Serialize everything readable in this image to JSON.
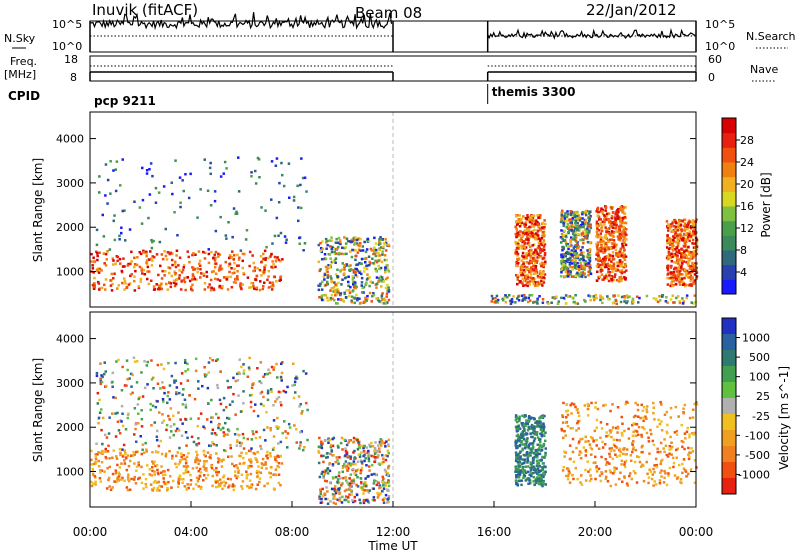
{
  "header": {
    "station": "Inuvik (fitACF)",
    "beam": "Beam 08",
    "date": "22/Jan/2012"
  },
  "time_axis": {
    "label": "Time UT",
    "ticks": [
      "00:00",
      "04:00",
      "08:00",
      "12:00",
      "16:00",
      "20:00",
      "00:00"
    ],
    "range_hours": [
      0,
      24
    ],
    "data_gap_hours": [
      12.0,
      15.75
    ]
  },
  "nsky_panel": {
    "left_label": "N.Sky",
    "right_label": "N.Search",
    "left_ticks": [
      "10^5",
      "10^0"
    ],
    "right_ticks": [
      "10^5",
      "10^0"
    ]
  },
  "freq_panel": {
    "left_label_1": "Freq.",
    "left_label_2": "[MHz]",
    "right_label": "Nave",
    "left_ticks": [
      "18",
      "8"
    ],
    "right_ticks": [
      "60",
      "0"
    ]
  },
  "cpid": {
    "label": "CPID",
    "programs": [
      {
        "name": "pcp 9211",
        "start_hour": 0.0,
        "end_hour": 12.0
      },
      {
        "name": "themis 3300",
        "start_hour": 15.75,
        "end_hour": 24.0
      }
    ]
  },
  "chart_data": [
    {
      "type": "heatmap",
      "name": "power",
      "xlabel": "Time UT",
      "ylabel": "Slant Range [km]",
      "xlim": [
        0,
        24
      ],
      "ylim": [
        200,
        4600
      ],
      "yticks": [
        1000,
        2000,
        3000,
        4000
      ],
      "colorbar": {
        "label": "Power [dB]",
        "ticks": [
          "4",
          "8",
          "12",
          "16",
          "20",
          "24",
          "28"
        ],
        "colors": [
          "#1a1aff",
          "#2840b0",
          "#2f6a7c",
          "#3a8a5a",
          "#4aa04a",
          "#80c040",
          "#d8d820",
          "#f0b020",
          "#f08010",
          "#f05010",
          "#e82010",
          "#d80000"
        ]
      },
      "echo_regions": [
        {
          "t": [
            0.0,
            7.6
          ],
          "r": [
            600,
            1500
          ],
          "value": "strong"
        },
        {
          "t": [
            0.2,
            8.6
          ],
          "r": [
            1500,
            3600
          ],
          "value": "sparse"
        },
        {
          "t": [
            9.0,
            11.8
          ],
          "r": [
            300,
            1800
          ],
          "value": "patchy"
        },
        {
          "t": [
            15.8,
            24.0
          ],
          "r": [
            300,
            500
          ],
          "value": "near-range"
        },
        {
          "t": [
            16.8,
            18.0
          ],
          "r": [
            700,
            2300
          ],
          "value": "strong"
        },
        {
          "t": [
            18.6,
            19.8
          ],
          "r": [
            900,
            2400
          ],
          "value": "moderate"
        },
        {
          "t": [
            20.0,
            21.2
          ],
          "r": [
            800,
            2500
          ],
          "value": "strong"
        },
        {
          "t": [
            22.8,
            24.0
          ],
          "r": [
            700,
            2200
          ],
          "value": "strong"
        }
      ]
    },
    {
      "type": "heatmap",
      "name": "velocity",
      "xlabel": "Time UT",
      "ylabel": "Slant Range [km]",
      "xlim": [
        0,
        24
      ],
      "ylim": [
        200,
        4600
      ],
      "yticks": [
        1000,
        2000,
        3000,
        4000
      ],
      "colorbar": {
        "label": "Velocity [m s^-1]",
        "ticks": [
          "1000",
          "500",
          "100",
          "25",
          "-25",
          "-100",
          "-500",
          "-1000"
        ],
        "colors": [
          "#2030c0",
          "#2860a0",
          "#2f7a70",
          "#40a050",
          "#60c040",
          "#b0b0b0",
          "#f0c020",
          "#f0a020",
          "#f08020",
          "#f05010",
          "#e82010"
        ]
      },
      "echo_regions": [
        {
          "t": [
            0.0,
            7.6
          ],
          "r": [
            600,
            1500
          ],
          "value": "negative"
        },
        {
          "t": [
            0.2,
            8.6
          ],
          "r": [
            1500,
            3600
          ],
          "value": "mixed"
        },
        {
          "t": [
            9.0,
            11.8
          ],
          "r": [
            300,
            1800
          ],
          "value": "mixed"
        },
        {
          "t": [
            16.8,
            18.0
          ],
          "r": [
            700,
            2300
          ],
          "value": "positive"
        },
        {
          "t": [
            18.6,
            24.0
          ],
          "r": [
            700,
            2600
          ],
          "value": "negative"
        }
      ]
    }
  ]
}
